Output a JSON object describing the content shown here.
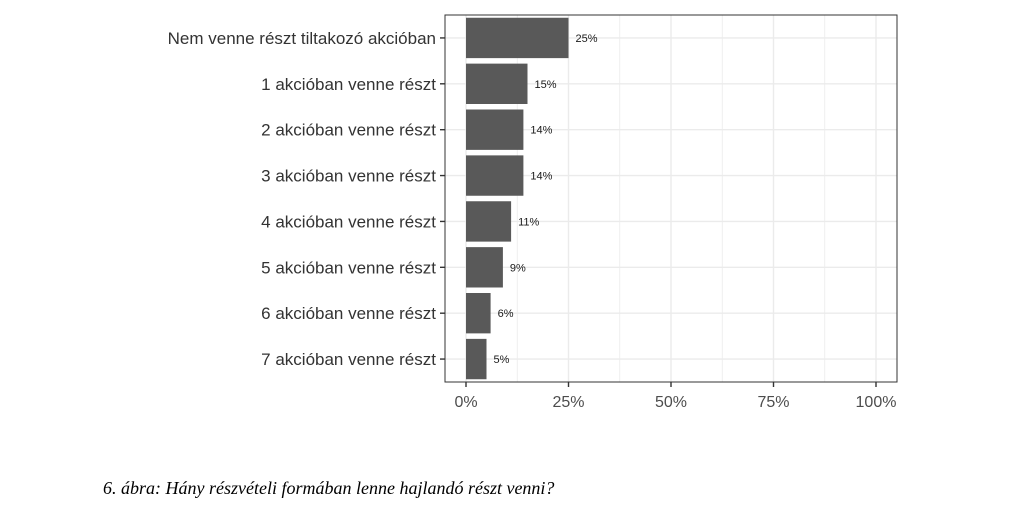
{
  "chart_data": {
    "type": "bar",
    "orientation": "horizontal",
    "categories": [
      "Nem venne részt tiltakozó akcióban",
      "1 akcióban venne részt",
      "2 akcióban venne részt",
      "3 akcióban venne részt",
      "4 akcióban venne részt",
      "5 akcióban venne részt",
      "6 akcióban venne részt",
      "7 akcióban venne részt"
    ],
    "values": [
      25,
      15,
      14,
      14,
      11,
      9,
      6,
      5
    ],
    "value_labels": [
      "25%",
      "15%",
      "14%",
      "14%",
      "11%",
      "9%",
      "6%",
      "5%"
    ],
    "xlim": [
      0,
      100
    ],
    "xticks": [
      0,
      25,
      50,
      75,
      100
    ],
    "xtick_labels": [
      "0%",
      "25%",
      "50%",
      "75%",
      "100%"
    ],
    "xlabel": "",
    "ylabel": "",
    "grid": true,
    "bar_color": "#595959",
    "grid_color": "#ebebeb"
  },
  "caption": "6. ábra: Hány részvételi formában lenne hajlandó részt venni?"
}
